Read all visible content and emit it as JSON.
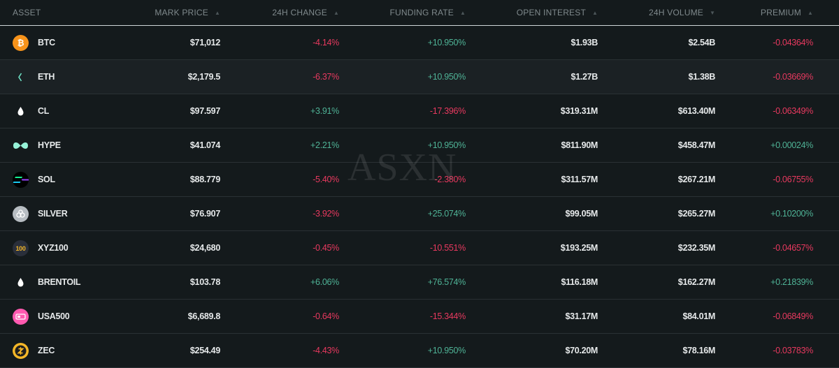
{
  "columns": {
    "asset": "ASSET",
    "mark_price": "MARK PRICE",
    "change_24h": "24H CHANGE",
    "funding_rate": "FUNDING RATE",
    "open_interest": "OPEN INTEREST",
    "volume_24h": "24H VOLUME",
    "premium": "PREMIUM"
  },
  "sort_icons": {
    "mark_price": "▲",
    "change_24h": "▲",
    "funding_rate": "▲",
    "open_interest": "▲",
    "volume_24h": "▼",
    "premium": "▲"
  },
  "watermark": "ASXN",
  "colors": {
    "positive": "#4fb396",
    "negative": "#e8395f"
  },
  "rows": [
    {
      "symbol": "BTC",
      "icon": "bitcoin-icon",
      "mark_price": "$71,012",
      "change_24h": "-4.14%",
      "funding_rate": "+10.950%",
      "open_interest": "$1.93B",
      "volume_24h": "$2.54B",
      "premium": "-0.04364%"
    },
    {
      "symbol": "ETH",
      "icon": "ethereum-icon",
      "mark_price": "$2,179.5",
      "change_24h": "-6.37%",
      "funding_rate": "+10.950%",
      "open_interest": "$1.27B",
      "volume_24h": "$1.38B",
      "premium": "-0.03669%"
    },
    {
      "symbol": "CL",
      "icon": "oil-drop-icon",
      "mark_price": "$97.597",
      "change_24h": "+3.91%",
      "funding_rate": "-17.396%",
      "open_interest": "$319.31M",
      "volume_24h": "$613.40M",
      "premium": "-0.06349%"
    },
    {
      "symbol": "HYPE",
      "icon": "hype-icon",
      "mark_price": "$41.074",
      "change_24h": "+2.21%",
      "funding_rate": "+10.950%",
      "open_interest": "$811.90M",
      "volume_24h": "$458.47M",
      "premium": "+0.00024%"
    },
    {
      "symbol": "SOL",
      "icon": "solana-icon",
      "mark_price": "$88.779",
      "change_24h": "-5.40%",
      "funding_rate": "-2.380%",
      "open_interest": "$311.57M",
      "volume_24h": "$267.21M",
      "premium": "-0.06755%"
    },
    {
      "symbol": "SILVER",
      "icon": "silver-icon",
      "mark_price": "$76.907",
      "change_24h": "-3.92%",
      "funding_rate": "+25.074%",
      "open_interest": "$99.05M",
      "volume_24h": "$265.27M",
      "premium": "+0.10200%"
    },
    {
      "symbol": "XYZ100",
      "icon": "xyz100-icon",
      "icon_text": "100",
      "mark_price": "$24,680",
      "change_24h": "-0.45%",
      "funding_rate": "-10.551%",
      "open_interest": "$193.25M",
      "volume_24h": "$232.35M",
      "premium": "-0.04657%"
    },
    {
      "symbol": "BRENTOIL",
      "icon": "oil-drop-icon",
      "mark_price": "$103.78",
      "change_24h": "+6.06%",
      "funding_rate": "+76.574%",
      "open_interest": "$116.18M",
      "volume_24h": "$162.27M",
      "premium": "+0.21839%"
    },
    {
      "symbol": "USA500",
      "icon": "usa500-icon",
      "mark_price": "$6,689.8",
      "change_24h": "-0.64%",
      "funding_rate": "-15.344%",
      "open_interest": "$31.17M",
      "volume_24h": "$84.01M",
      "premium": "-0.06849%"
    },
    {
      "symbol": "ZEC",
      "icon": "zcash-icon",
      "mark_price": "$254.49",
      "change_24h": "-4.43%",
      "funding_rate": "+10.950%",
      "open_interest": "$70.20M",
      "volume_24h": "$78.16M",
      "premium": "-0.03783%"
    }
  ]
}
